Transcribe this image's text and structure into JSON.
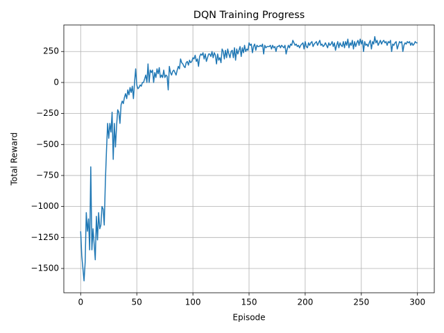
{
  "chart_data": {
    "type": "line",
    "title": "DQN Training Progress",
    "x_label": "Episode",
    "y_label": "Total Reward",
    "grid": true,
    "xlim": [
      -15,
      315
    ],
    "xticks": [
      0,
      50,
      100,
      150,
      200,
      250,
      300
    ],
    "ylim": [
      -1696,
      464
    ],
    "yticks": [
      {
        "value": -1500,
        "label": "−1500"
      },
      {
        "value": -1250,
        "label": "−1250"
      },
      {
        "value": -1000,
        "label": "−1000"
      },
      {
        "value": -750,
        "label": "−750"
      },
      {
        "value": -500,
        "label": "−500"
      },
      {
        "value": -250,
        "label": "−250"
      },
      0,
      250
    ],
    "x": [
      0,
      1,
      2,
      3,
      4,
      5,
      6,
      7,
      8,
      9,
      10,
      11,
      12,
      13,
      14,
      15,
      16,
      17,
      18,
      19,
      20,
      21,
      22,
      23,
      24,
      25,
      26,
      27,
      28,
      29,
      30,
      31,
      32,
      33,
      34,
      35,
      36,
      37,
      38,
      39,
      40,
      41,
      42,
      43,
      44,
      45,
      46,
      47,
      48,
      49,
      50,
      51,
      52,
      53,
      54,
      55,
      56,
      57,
      58,
      59,
      60,
      61,
      62,
      63,
      64,
      65,
      66,
      67,
      68,
      69,
      70,
      71,
      72,
      73,
      74,
      75,
      76,
      77,
      78,
      79,
      80,
      81,
      82,
      83,
      84,
      85,
      86,
      87,
      88,
      89,
      90,
      91,
      92,
      93,
      94,
      95,
      96,
      97,
      98,
      99,
      100,
      101,
      102,
      103,
      104,
      105,
      106,
      107,
      108,
      109,
      110,
      111,
      112,
      113,
      114,
      115,
      116,
      117,
      118,
      119,
      120,
      121,
      122,
      123,
      124,
      125,
      126,
      127,
      128,
      129,
      130,
      131,
      132,
      133,
      134,
      135,
      136,
      137,
      138,
      139,
      140,
      141,
      142,
      143,
      144,
      145,
      146,
      147,
      148,
      149,
      150,
      151,
      152,
      153,
      154,
      155,
      156,
      157,
      158,
      159,
      160,
      161,
      162,
      163,
      164,
      165,
      166,
      167,
      168,
      169,
      170,
      171,
      172,
      173,
      174,
      175,
      176,
      177,
      178,
      179,
      180,
      181,
      182,
      183,
      184,
      185,
      186,
      187,
      188,
      189,
      190,
      191,
      192,
      193,
      194,
      195,
      196,
      197,
      198,
      199,
      200,
      201,
      202,
      203,
      204,
      205,
      206,
      207,
      208,
      209,
      210,
      211,
      212,
      213,
      214,
      215,
      216,
      217,
      218,
      219,
      220,
      221,
      222,
      223,
      224,
      225,
      226,
      227,
      228,
      229,
      230,
      231,
      232,
      233,
      234,
      235,
      236,
      237,
      238,
      239,
      240,
      241,
      242,
      243,
      244,
      245,
      246,
      247,
      248,
      249,
      250,
      251,
      252,
      253,
      254,
      255,
      256,
      257,
      258,
      259,
      260,
      261,
      262,
      263,
      264,
      265,
      266,
      267,
      268,
      269,
      270,
      271,
      272,
      273,
      274,
      275,
      276,
      277,
      278,
      279,
      280,
      281,
      282,
      283,
      284,
      285,
      286,
      287,
      288,
      289,
      290,
      291,
      292,
      293,
      294,
      295,
      296,
      297,
      298,
      299,
      300
    ],
    "series": [
      {
        "color": "#1f77b4",
        "values": [
          -1200,
          -1400,
          -1500,
          -1600,
          -1450,
          -1050,
          -1200,
          -1100,
          -1350,
          -680,
          -1350,
          -1180,
          -1300,
          -1430,
          -1080,
          -1270,
          -1050,
          -1180,
          -1150,
          -1000,
          -1020,
          -1150,
          -800,
          -550,
          -330,
          -450,
          -330,
          -400,
          -240,
          -620,
          -330,
          -520,
          -350,
          -220,
          -240,
          -330,
          -180,
          -150,
          -170,
          -120,
          -90,
          -130,
          -60,
          -100,
          -40,
          -80,
          -30,
          -130,
          0,
          110,
          -20,
          -50,
          -40,
          -20,
          -30,
          0,
          0,
          30,
          60,
          0,
          150,
          0,
          100,
          80,
          100,
          0,
          80,
          40,
          110,
          70,
          120,
          40,
          60,
          40,
          100,
          40,
          60,
          50,
          -60,
          130,
          80,
          60,
          90,
          100,
          80,
          60,
          100,
          130,
          110,
          190,
          160,
          150,
          130,
          120,
          160,
          170,
          140,
          180,
          160,
          170,
          200,
          190,
          220,
          170,
          190,
          130,
          210,
          230,
          220,
          240,
          190,
          230,
          170,
          200,
          230,
          230,
          210,
          250,
          200,
          240,
          220,
          150,
          230,
          180,
          200,
          160,
          270,
          250,
          190,
          260,
          200,
          270,
          230,
          200,
          250,
          260,
          200,
          280,
          180,
          270,
          230,
          260,
          290,
          210,
          280,
          240,
          300,
          250,
          270,
          260,
          320,
          300,
          310,
          240,
          290,
          310,
          260,
          300,
          290,
          290,
          300,
          290,
          310,
          230,
          300,
          280,
          290,
          290,
          290,
          300,
          270,
          300,
          280,
          290,
          250,
          290,
          290,
          300,
          280,
          300,
          290,
          280,
          300,
          230,
          270,
          300,
          280,
          310,
          300,
          340,
          320,
          300,
          310,
          290,
          300,
          280,
          300,
          310,
          320,
          270,
          330,
          290,
          280,
          320,
          300,
          320,
          330,
          290,
          310,
          320,
          330,
          300,
          320,
          340,
          300,
          310,
          290,
          300,
          320,
          300,
          280,
          320,
          300,
          310,
          330,
          290,
          320,
          260,
          300,
          330,
          280,
          320,
          300,
          290,
          330,
          280,
          330,
          300,
          350,
          280,
          320,
          300,
          340,
          270,
          330,
          290,
          320,
          340,
          300,
          350,
          310,
          340,
          250,
          330,
          300,
          310,
          290,
          320,
          340,
          270,
          330,
          310,
          370,
          320,
          340,
          300,
          320,
          340,
          310,
          330,
          340,
          320,
          330,
          300,
          330,
          320,
          340,
          250,
          310,
          300,
          320,
          330,
          270,
          300,
          330,
          320,
          330,
          250,
          300,
          320,
          310,
          330,
          320,
          330,
          300,
          320,
          300,
          310,
          330,
          320,
          320
        ]
      }
    ]
  }
}
